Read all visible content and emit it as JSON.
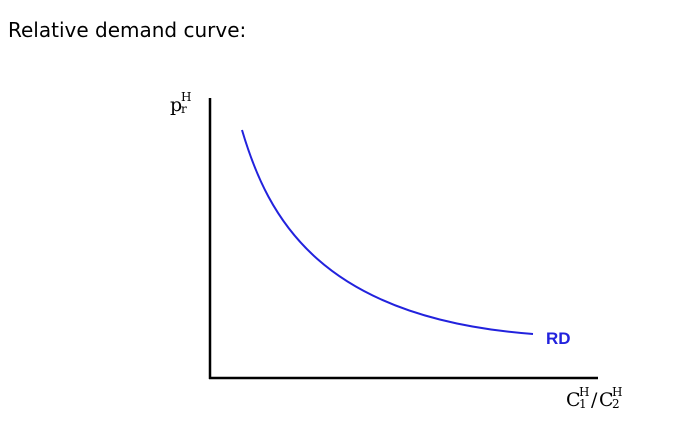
{
  "heading": "Relative demand curve:",
  "diagram": {
    "y_axis_label": {
      "base": "p",
      "sup": "H",
      "sub": "r"
    },
    "x_axis_label": {
      "c1_base": "C",
      "c1_sup": "H",
      "c1_sub": "1",
      "slash": "/",
      "c2_base": "C",
      "c2_sup": "H",
      "c2_sub": "2"
    },
    "curve_label": "RD",
    "colors": {
      "curve": "#2222dd",
      "axes": "#000000",
      "label": "#2222dd"
    }
  }
}
